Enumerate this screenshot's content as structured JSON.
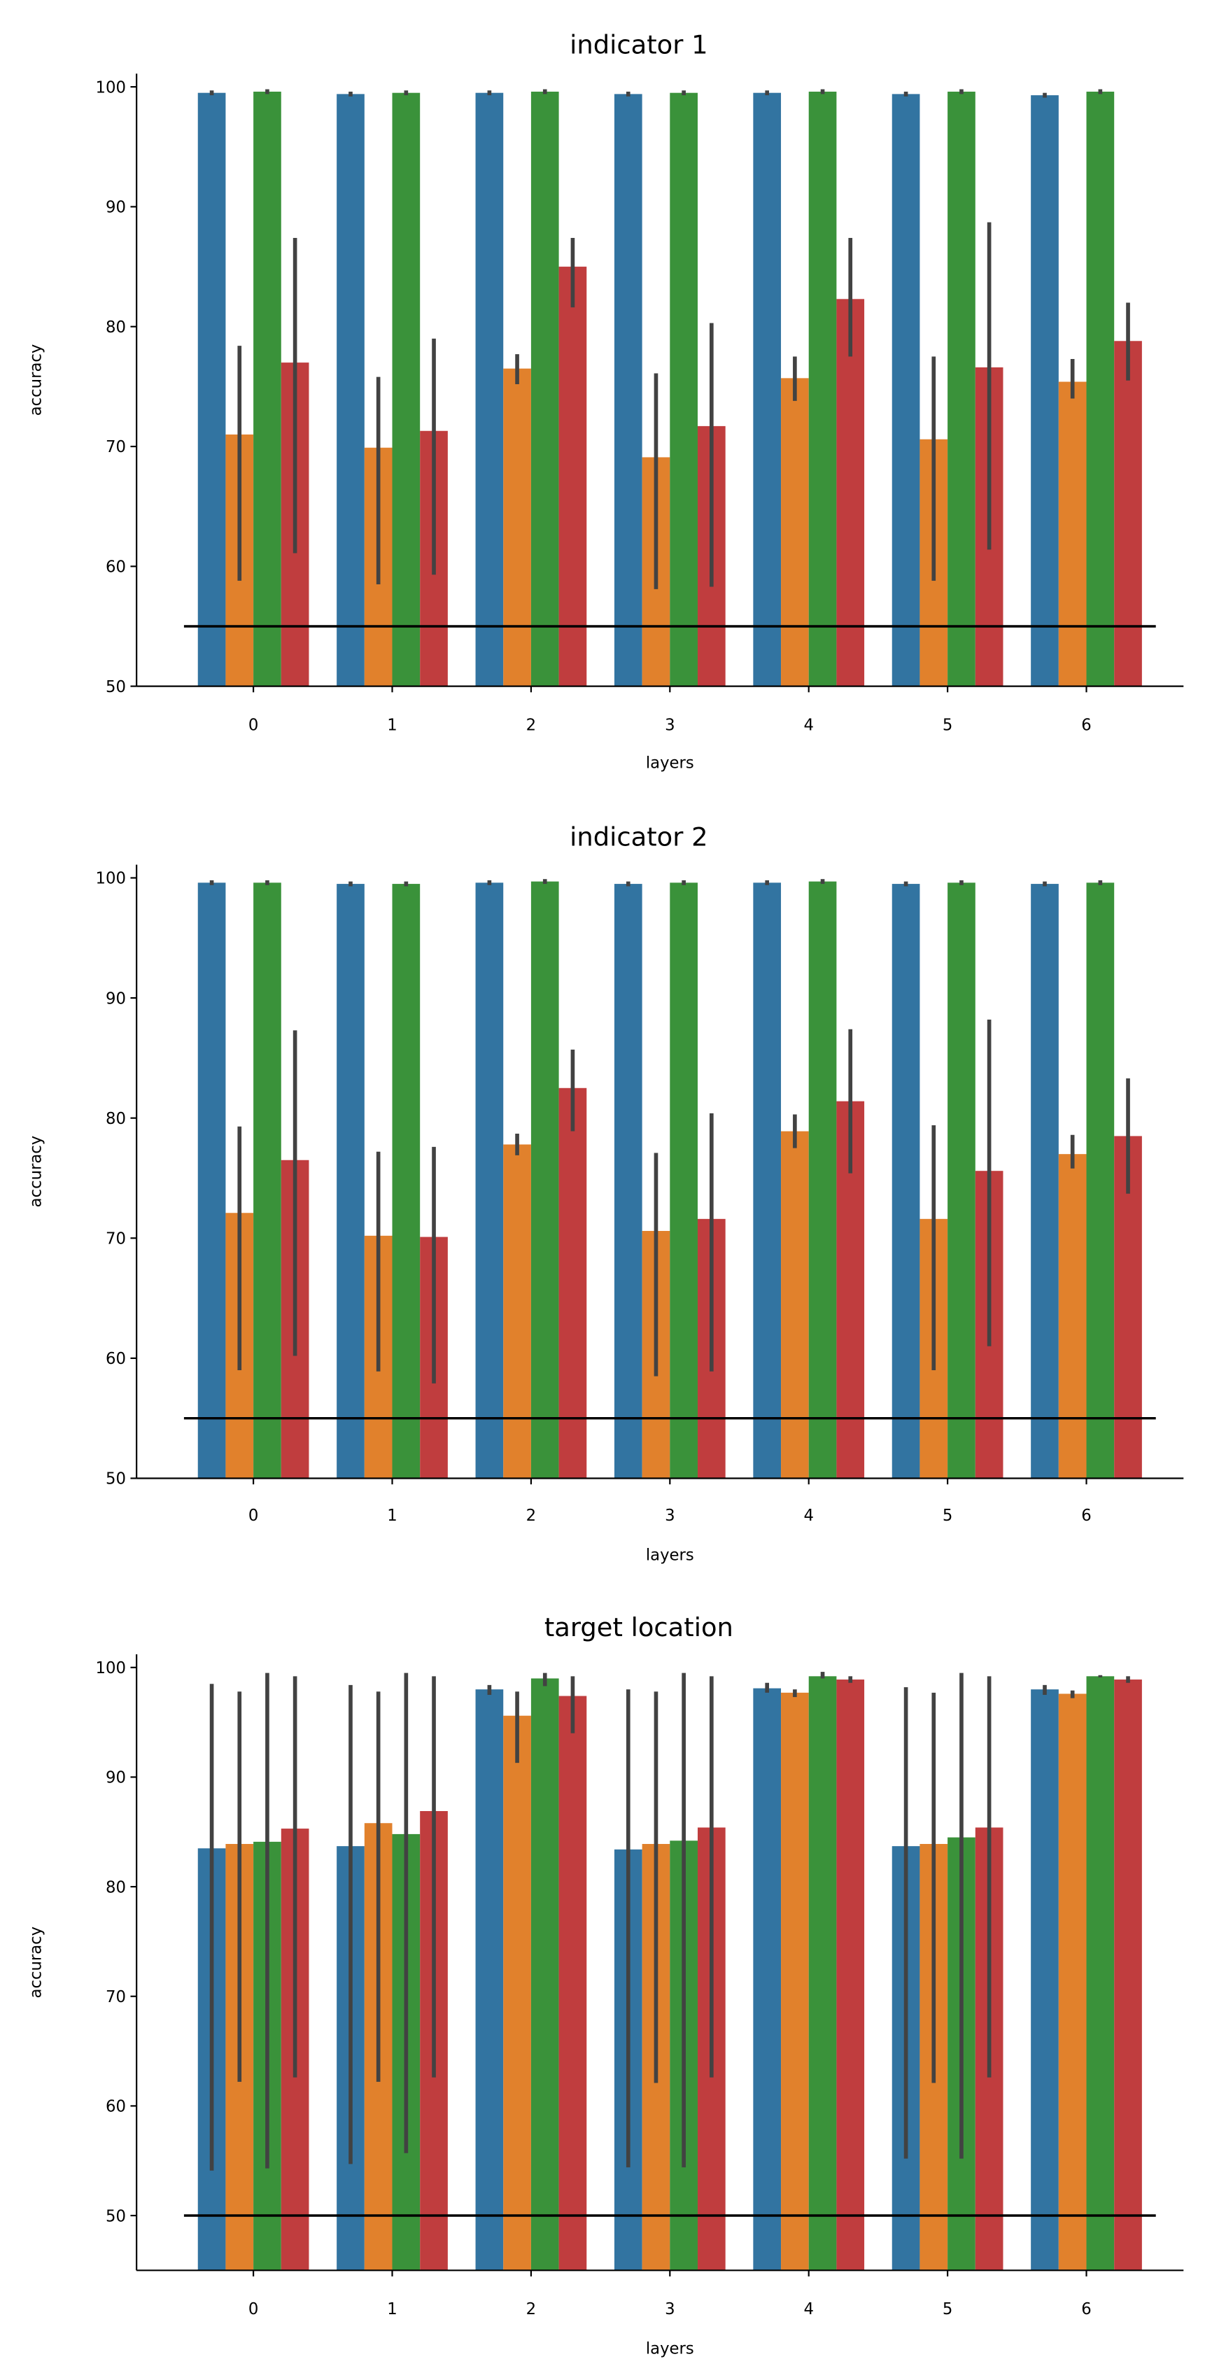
{
  "chart_data": [
    {
      "type": "bar",
      "title": "indicator 1",
      "xlabel": "layers",
      "ylabel": "accuracy",
      "categories": [
        "0",
        "1",
        "2",
        "3",
        "4",
        "5",
        "6"
      ],
      "ylim": [
        50,
        101.1
      ],
      "yticks": [
        50,
        60,
        70,
        80,
        90,
        100
      ],
      "grid": false,
      "legend": "none",
      "reference_line": 55,
      "series": [
        {
          "color": "#3274a1",
          "values": [
            99.5,
            99.4,
            99.5,
            99.4,
            99.5,
            99.4,
            99.3
          ],
          "err_low": [
            99.3,
            99.2,
            99.3,
            99.2,
            99.3,
            99.2,
            99.1
          ],
          "err_high": [
            99.7,
            99.6,
            99.7,
            99.6,
            99.7,
            99.6,
            99.5
          ]
        },
        {
          "color": "#e1812c",
          "values": [
            71.0,
            69.9,
            76.5,
            69.1,
            75.7,
            70.6,
            75.4
          ],
          "err_low": [
            58.8,
            58.5,
            75.2,
            58.1,
            73.8,
            58.8,
            74.0
          ],
          "err_high": [
            78.4,
            75.8,
            77.7,
            76.1,
            77.5,
            77.5,
            77.3
          ]
        },
        {
          "color": "#3a923a",
          "values": [
            99.6,
            99.5,
            99.6,
            99.5,
            99.6,
            99.6,
            99.6
          ],
          "err_low": [
            99.4,
            99.3,
            99.4,
            99.3,
            99.4,
            99.4,
            99.4
          ],
          "err_high": [
            99.8,
            99.7,
            99.8,
            99.7,
            99.8,
            99.8,
            99.8
          ]
        },
        {
          "color": "#c03d3e",
          "values": [
            77.0,
            71.3,
            85.0,
            71.7,
            82.3,
            76.6,
            78.8
          ],
          "err_low": [
            61.1,
            59.3,
            81.6,
            58.3,
            77.5,
            61.4,
            75.5
          ],
          "err_high": [
            87.4,
            79.0,
            87.4,
            80.3,
            87.4,
            88.7,
            82.0
          ]
        }
      ]
    },
    {
      "type": "bar",
      "title": "indicator 2",
      "xlabel": "layers",
      "ylabel": "accuracy",
      "categories": [
        "0",
        "1",
        "2",
        "3",
        "4",
        "5",
        "6"
      ],
      "ylim": [
        50,
        101.1
      ],
      "yticks": [
        50,
        60,
        70,
        80,
        90,
        100
      ],
      "grid": false,
      "legend": "none",
      "reference_line": 55,
      "series": [
        {
          "color": "#3274a1",
          "values": [
            99.6,
            99.5,
            99.6,
            99.5,
            99.6,
            99.5,
            99.5
          ],
          "err_low": [
            99.4,
            99.3,
            99.4,
            99.3,
            99.4,
            99.3,
            99.3
          ],
          "err_high": [
            99.8,
            99.7,
            99.8,
            99.7,
            99.8,
            99.7,
            99.7
          ]
        },
        {
          "color": "#e1812c",
          "values": [
            72.1,
            70.2,
            77.8,
            70.6,
            78.9,
            71.6,
            77.0
          ],
          "err_low": [
            59.0,
            58.9,
            76.9,
            58.5,
            77.5,
            59.0,
            75.8
          ],
          "err_high": [
            79.3,
            77.2,
            78.7,
            77.1,
            80.3,
            79.4,
            78.6
          ]
        },
        {
          "color": "#3a923a",
          "values": [
            99.6,
            99.5,
            99.7,
            99.6,
            99.7,
            99.6,
            99.6
          ],
          "err_low": [
            99.4,
            99.3,
            99.5,
            99.4,
            99.5,
            99.4,
            99.4
          ],
          "err_high": [
            99.8,
            99.7,
            99.9,
            99.8,
            99.9,
            99.8,
            99.8
          ]
        },
        {
          "color": "#c03d3e",
          "values": [
            76.5,
            70.1,
            82.5,
            71.6,
            81.4,
            75.6,
            78.5
          ],
          "err_low": [
            60.2,
            57.9,
            78.9,
            58.9,
            75.4,
            61.0,
            73.7
          ],
          "err_high": [
            87.3,
            77.6,
            85.7,
            80.4,
            87.4,
            88.2,
            83.3
          ]
        }
      ]
    },
    {
      "type": "bar",
      "title": "target location",
      "xlabel": "layers",
      "ylabel": "accuracy",
      "categories": [
        "0",
        "1",
        "2",
        "3",
        "4",
        "5",
        "6"
      ],
      "ylim": [
        45,
        101.2
      ],
      "yticks": [
        50,
        60,
        70,
        80,
        90,
        100
      ],
      "grid": false,
      "legend": "none",
      "reference_line": 50,
      "series": [
        {
          "color": "#3274a1",
          "values": [
            83.5,
            83.7,
            98.0,
            83.4,
            98.1,
            83.7,
            98.0
          ],
          "err_low": [
            54.1,
            54.7,
            97.5,
            54.4,
            97.7,
            55.2,
            97.5
          ],
          "err_high": [
            98.5,
            98.4,
            98.4,
            98.0,
            98.6,
            98.2,
            98.4
          ]
        },
        {
          "color": "#e1812c",
          "values": [
            83.9,
            85.8,
            95.6,
            83.9,
            97.7,
            83.9,
            97.6
          ],
          "err_low": [
            62.2,
            62.2,
            91.3,
            62.1,
            97.3,
            62.1,
            97.2
          ],
          "err_high": [
            97.8,
            97.8,
            97.8,
            97.8,
            98.0,
            97.7,
            97.9
          ]
        },
        {
          "color": "#3a923a",
          "values": [
            84.1,
            84.8,
            99.0,
            84.2,
            99.2,
            84.5,
            99.2
          ],
          "err_low": [
            54.3,
            55.7,
            98.3,
            54.4,
            99.0,
            55.2,
            99.1
          ],
          "err_high": [
            99.5,
            99.5,
            99.5,
            99.5,
            99.6,
            99.5,
            99.3
          ]
        },
        {
          "color": "#c03d3e",
          "values": [
            85.3,
            86.9,
            97.4,
            85.4,
            98.9,
            85.4,
            98.9
          ],
          "err_low": [
            62.6,
            62.6,
            94.0,
            62.6,
            98.6,
            62.6,
            98.6
          ],
          "err_high": [
            99.2,
            99.2,
            99.2,
            99.2,
            99.2,
            99.2,
            99.2
          ]
        }
      ]
    }
  ]
}
